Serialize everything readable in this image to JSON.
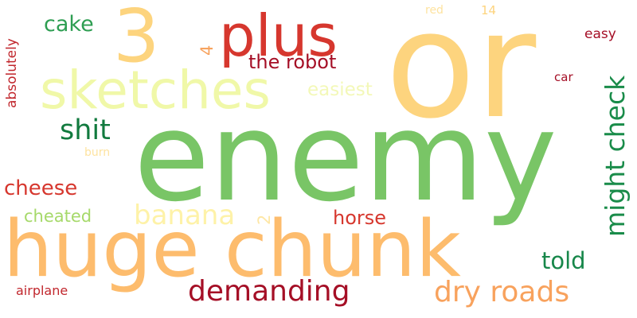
{
  "word_cloud": {
    "background": "#ffffff",
    "words": [
      {
        "text": "or",
        "color": "#fdd47e",
        "orientation": "horizontal"
      },
      {
        "text": "enemy",
        "color": "#79c566",
        "orientation": "horizontal"
      },
      {
        "text": "huge chunk",
        "color": "#fdbc6d",
        "orientation": "horizontal"
      },
      {
        "text": "plus",
        "color": "#d6372e",
        "orientation": "horizontal"
      },
      {
        "text": "3",
        "color": "#fdd47e",
        "orientation": "horizontal"
      },
      {
        "text": "sketches",
        "color": "#f0f8a8",
        "orientation": "horizontal"
      },
      {
        "text": "might check",
        "color": "#1a8c4a",
        "orientation": "vertical"
      },
      {
        "text": "dry roads",
        "color": "#f8a25d",
        "orientation": "horizontal"
      },
      {
        "text": "demanding",
        "color": "#a50f26",
        "orientation": "horizontal"
      },
      {
        "text": "banana",
        "color": "#fef2a8",
        "orientation": "horizontal"
      },
      {
        "text": "shit",
        "color": "#117a3e",
        "orientation": "horizontal"
      },
      {
        "text": "the robot",
        "color": "#a50f26",
        "orientation": "horizontal"
      },
      {
        "text": "cheese",
        "color": "#d6372e",
        "orientation": "horizontal"
      },
      {
        "text": "told",
        "color": "#17874a",
        "orientation": "horizontal"
      },
      {
        "text": "cake",
        "color": "#2e9e52",
        "orientation": "horizontal"
      },
      {
        "text": "horse",
        "color": "#d6372e",
        "orientation": "horizontal"
      },
      {
        "text": "cheated",
        "color": "#a6d96a",
        "orientation": "horizontal"
      },
      {
        "text": "easiest",
        "color": "#f3f8b8",
        "orientation": "horizontal"
      },
      {
        "text": "absolutely",
        "color": "#c1272d",
        "orientation": "vertical"
      },
      {
        "text": "4",
        "color": "#f7a35f",
        "orientation": "vertical"
      },
      {
        "text": "2",
        "color": "#fee7a6",
        "orientation": "vertical"
      },
      {
        "text": "easy",
        "color": "#a50f26",
        "orientation": "horizontal"
      },
      {
        "text": "car",
        "color": "#a50f26",
        "orientation": "horizontal"
      },
      {
        "text": "airplane",
        "color": "#c1272d",
        "orientation": "horizontal"
      },
      {
        "text": "red",
        "color": "#fee3a0",
        "orientation": "horizontal"
      },
      {
        "text": "14",
        "color": "#fdd47e",
        "orientation": "horizontal"
      },
      {
        "text": "burn",
        "color": "#fee3a0",
        "orientation": "horizontal"
      }
    ]
  }
}
